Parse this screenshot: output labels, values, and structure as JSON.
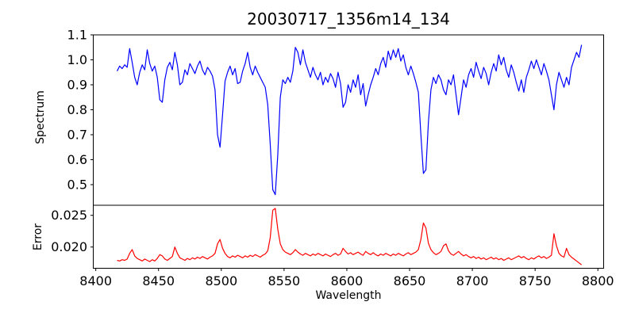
{
  "chart_data": {
    "type": "line",
    "title": "20030717_1356m14_134",
    "xlabel": "Wavelength",
    "grid": false,
    "legend": null,
    "x_start": 8417,
    "x_step": 2,
    "xlim": [
      8398,
      8804.6
    ],
    "x_ticks": {
      "values": [
        8400,
        8450,
        8500,
        8550,
        8600,
        8650,
        8700,
        8750,
        8800
      ],
      "labels": [
        "8400",
        "8450",
        "8500",
        "8550",
        "8600",
        "8650",
        "8700",
        "8750",
        "8800"
      ]
    },
    "series": [
      {
        "name": "Spectrum",
        "ylabel": "Spectrum",
        "color": "#0000ff",
        "ylim": [
          0.4175,
          1.1
        ],
        "yticks": {
          "values": [
            0.5,
            0.6,
            0.7,
            0.8,
            0.9,
            1.0,
            1.1
          ],
          "labels": [
            "0.5",
            "0.6",
            "0.7",
            "0.8",
            "0.9",
            "1.0",
            "1.1"
          ]
        },
        "absorption_lines": [
          8498,
          8542,
          8662
        ],
        "values": [
          0.955,
          0.975,
          0.965,
          0.98,
          0.97,
          1.045,
          0.99,
          0.93,
          0.9,
          0.95,
          0.98,
          0.96,
          1.04,
          0.985,
          0.955,
          0.975,
          0.93,
          0.84,
          0.83,
          0.92,
          0.97,
          0.99,
          0.96,
          1.03,
          0.98,
          0.9,
          0.91,
          0.96,
          0.94,
          0.985,
          0.965,
          0.945,
          0.975,
          0.995,
          0.96,
          0.94,
          0.97,
          0.955,
          0.935,
          0.88,
          0.7,
          0.65,
          0.78,
          0.915,
          0.95,
          0.975,
          0.94,
          0.965,
          0.905,
          0.91,
          0.955,
          0.985,
          1.03,
          0.97,
          0.94,
          0.975,
          0.95,
          0.93,
          0.91,
          0.89,
          0.82,
          0.66,
          0.48,
          0.46,
          0.62,
          0.85,
          0.92,
          0.905,
          0.93,
          0.91,
          0.955,
          1.05,
          1.03,
          0.98,
          1.04,
          0.99,
          0.96,
          0.93,
          0.97,
          0.94,
          0.92,
          0.95,
          0.9,
          0.93,
          0.91,
          0.945,
          0.925,
          0.89,
          0.95,
          0.905,
          0.81,
          0.83,
          0.9,
          0.87,
          0.92,
          0.89,
          0.94,
          0.86,
          0.905,
          0.815,
          0.86,
          0.9,
          0.93,
          0.965,
          0.94,
          0.985,
          1.01,
          0.97,
          1.035,
          1.0,
          1.04,
          1.01,
          1.045,
          0.995,
          1.02,
          0.97,
          0.94,
          0.975,
          0.945,
          0.91,
          0.87,
          0.7,
          0.545,
          0.56,
          0.75,
          0.88,
          0.93,
          0.905,
          0.94,
          0.92,
          0.88,
          0.86,
          0.92,
          0.9,
          0.94,
          0.86,
          0.78,
          0.85,
          0.92,
          0.89,
          0.94,
          0.965,
          0.93,
          0.99,
          0.955,
          0.925,
          0.97,
          0.945,
          0.9,
          0.95,
          0.985,
          0.955,
          1.02,
          0.98,
          1.01,
          0.96,
          0.93,
          0.98,
          0.95,
          0.91,
          0.875,
          0.92,
          0.87,
          0.93,
          0.96,
          0.995,
          0.965,
          1.0,
          0.97,
          0.94,
          0.985,
          0.955,
          0.92,
          0.86,
          0.8,
          0.9,
          0.95,
          0.92,
          0.89,
          0.93,
          0.9,
          0.97,
          1.0,
          1.03,
          1.01,
          1.06
        ]
      },
      {
        "name": "Error",
        "ylabel": "Error",
        "color": "#ff0000",
        "ylim": [
          0.01665,
          0.02659
        ],
        "yticks": {
          "values": [
            0.02,
            0.025
          ],
          "labels": [
            "0.020",
            "0.025"
          ]
        },
        "values": [
          0.0179,
          0.0178,
          0.018,
          0.0179,
          0.0181,
          0.019,
          0.0196,
          0.0186,
          0.0182,
          0.018,
          0.0178,
          0.0181,
          0.0179,
          0.0177,
          0.018,
          0.0178,
          0.0182,
          0.0188,
          0.0186,
          0.0181,
          0.0179,
          0.0182,
          0.0185,
          0.02,
          0.019,
          0.0183,
          0.0181,
          0.0179,
          0.0182,
          0.018,
          0.0183,
          0.0181,
          0.0184,
          0.0182,
          0.0185,
          0.0183,
          0.0181,
          0.0184,
          0.0186,
          0.019,
          0.0205,
          0.0212,
          0.0198,
          0.019,
          0.0185,
          0.0183,
          0.0186,
          0.0184,
          0.0187,
          0.0185,
          0.0183,
          0.0186,
          0.0184,
          0.0187,
          0.0185,
          0.0188,
          0.0186,
          0.0184,
          0.0187,
          0.0189,
          0.0194,
          0.0215,
          0.0258,
          0.0261,
          0.0228,
          0.0205,
          0.0196,
          0.0192,
          0.019,
          0.0188,
          0.0191,
          0.0196,
          0.0192,
          0.0189,
          0.0187,
          0.019,
          0.0188,
          0.0186,
          0.0189,
          0.0187,
          0.019,
          0.0188,
          0.0186,
          0.0189,
          0.0187,
          0.0185,
          0.0188,
          0.019,
          0.0187,
          0.0189,
          0.0198,
          0.0193,
          0.0189,
          0.0191,
          0.0188,
          0.019,
          0.0192,
          0.0189,
          0.0187,
          0.0193,
          0.019,
          0.0188,
          0.0191,
          0.0188,
          0.0186,
          0.0189,
          0.0187,
          0.019,
          0.0188,
          0.0186,
          0.0189,
          0.0187,
          0.019,
          0.0188,
          0.0186,
          0.0189,
          0.0191,
          0.0188,
          0.019,
          0.0192,
          0.0196,
          0.0212,
          0.0238,
          0.023,
          0.0206,
          0.0196,
          0.0191,
          0.0188,
          0.019,
          0.0193,
          0.0202,
          0.0205,
          0.0194,
          0.0189,
          0.0187,
          0.019,
          0.0193,
          0.0189,
          0.0186,
          0.0188,
          0.0185,
          0.0183,
          0.0185,
          0.0182,
          0.0184,
          0.0181,
          0.0183,
          0.018,
          0.0182,
          0.0184,
          0.0181,
          0.0183,
          0.018,
          0.0182,
          0.0179,
          0.0181,
          0.0183,
          0.018,
          0.0182,
          0.0184,
          0.0186,
          0.0183,
          0.0185,
          0.0182,
          0.018,
          0.0183,
          0.0181,
          0.0184,
          0.0186,
          0.0183,
          0.0185,
          0.0182,
          0.0184,
          0.0187,
          0.0221,
          0.0202,
          0.019,
          0.0186,
          0.0184,
          0.0198,
          0.0188,
          0.0184,
          0.0181,
          0.0178,
          0.0175,
          0.0172
        ]
      }
    ]
  }
}
